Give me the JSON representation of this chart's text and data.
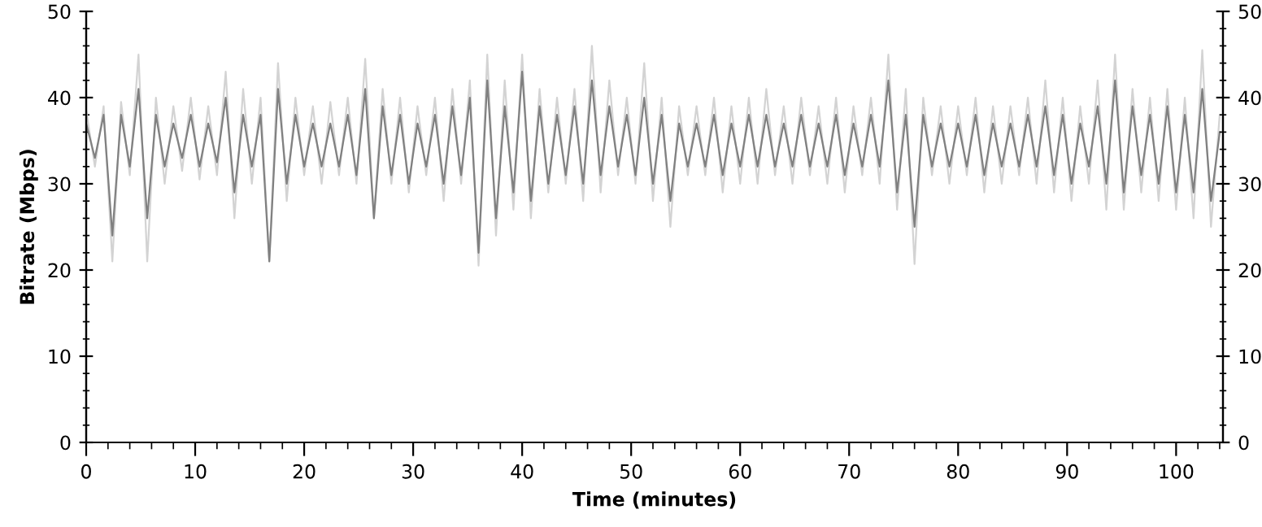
{
  "chart_data": {
    "type": "line",
    "xlabel": "Time (minutes)",
    "ylabel": "Bitrate (Mbps)",
    "x": [
      0,
      0.8,
      1.6,
      2.4,
      3.2,
      4,
      4.8,
      5.6,
      6.4,
      7.2,
      8,
      8.8,
      9.6,
      10.4,
      11.2,
      12,
      12.8,
      13.6,
      14.4,
      15.2,
      16,
      16.8,
      17.6,
      18.4,
      19.2,
      20,
      20.8,
      21.6,
      22.4,
      23.2,
      24,
      24.8,
      25.6,
      26.4,
      27.2,
      28,
      28.8,
      29.6,
      30.4,
      31.2,
      32,
      32.8,
      33.6,
      34.4,
      35.2,
      36,
      36.8,
      37.6,
      38.4,
      39.2,
      40,
      40.8,
      41.6,
      42.4,
      43.2,
      44,
      44.8,
      45.6,
      46.4,
      47.2,
      48,
      48.8,
      49.6,
      50.4,
      51.2,
      52,
      52.8,
      53.6,
      54.4,
      55.2,
      56,
      56.8,
      57.6,
      58.4,
      59.2,
      60,
      60.8,
      61.6,
      62.4,
      63.2,
      64,
      64.8,
      65.6,
      66.4,
      67.2,
      68,
      68.8,
      69.6,
      70.4,
      71.2,
      72,
      72.8,
      73.6,
      74.4,
      75.2,
      76,
      76.8,
      77.6,
      78.4,
      79.2,
      80,
      80.8,
      81.6,
      82.4,
      83.2,
      84,
      84.8,
      85.6,
      86.4,
      87.2,
      88,
      88.8,
      89.6,
      90.4,
      91.2,
      92,
      92.8,
      93.6,
      94.4,
      95.2,
      96,
      96.8,
      97.6,
      98.4,
      99.2,
      100,
      100.8,
      101.6,
      102.4,
      103.2,
      104
    ],
    "series": [
      {
        "color": "#d3d3d3",
        "values": [
          38.5,
          32,
          39,
          21,
          39.5,
          31,
          45,
          21,
          40,
          30,
          39,
          31.5,
          40,
          30.5,
          39,
          31,
          43,
          26,
          41,
          30,
          40,
          21,
          44,
          28,
          40,
          31,
          39,
          30,
          39.5,
          31,
          40,
          30,
          44.5,
          26,
          41,
          30,
          40,
          29,
          39,
          31,
          40,
          28,
          41,
          30,
          42,
          20.5,
          45,
          24,
          42,
          27,
          45,
          26,
          41,
          29,
          40,
          30,
          41,
          28,
          46,
          29,
          42,
          31,
          40,
          30,
          44,
          28,
          40,
          25,
          39,
          31,
          39,
          31,
          40,
          29,
          39,
          30,
          40,
          30,
          41,
          31,
          39,
          30,
          40,
          31,
          39,
          30,
          40,
          29,
          39,
          31,
          40,
          30,
          45,
          27,
          41,
          20.7,
          40,
          31,
          39,
          30,
          39,
          31,
          40,
          29,
          39,
          30,
          39,
          31,
          40,
          30,
          42,
          29,
          40,
          28,
          39,
          30,
          42,
          27,
          45,
          27,
          41,
          29,
          40,
          28,
          41,
          27,
          40,
          26,
          45.5,
          25,
          38
        ]
      },
      {
        "color": "#808080",
        "values": [
          37,
          33,
          38,
          24,
          38,
          32,
          41,
          26,
          38,
          32,
          37,
          33,
          38,
          32,
          37,
          32.5,
          40,
          29,
          38,
          32,
          38,
          21,
          41,
          30,
          38,
          32,
          37,
          32,
          37,
          32,
          38,
          31,
          41,
          26,
          39,
          31,
          38,
          30,
          37,
          32,
          38,
          30,
          39,
          31,
          40,
          22,
          42,
          26,
          39,
          29,
          43,
          28,
          39,
          30,
          38,
          31,
          39,
          30,
          42,
          31,
          39,
          32,
          38,
          31,
          40,
          30,
          38,
          28,
          37,
          32,
          37,
          32,
          38,
          31,
          37,
          32,
          38,
          32,
          38,
          32,
          37,
          32,
          38,
          32,
          37,
          32,
          38,
          31,
          37,
          32,
          38,
          32,
          42,
          29,
          38,
          25,
          38,
          32,
          37,
          32,
          37,
          32,
          38,
          31,
          37,
          32,
          37,
          32,
          38,
          32,
          39,
          31,
          38,
          30,
          37,
          32,
          39,
          30,
          42,
          29,
          39,
          31,
          38,
          30,
          39,
          29,
          38,
          29,
          41,
          28,
          36
        ]
      }
    ],
    "xlim": [
      0,
      104.3
    ],
    "xticks": [
      0,
      10,
      20,
      30,
      40,
      50,
      60,
      70,
      80,
      90,
      100
    ],
    "ylim": [
      0,
      50
    ],
    "yticks": [
      0,
      10,
      20,
      30,
      40,
      50
    ],
    "y2lim": [
      0,
      50
    ],
    "y2ticks": [
      0,
      10,
      20,
      30,
      40,
      50
    ]
  }
}
